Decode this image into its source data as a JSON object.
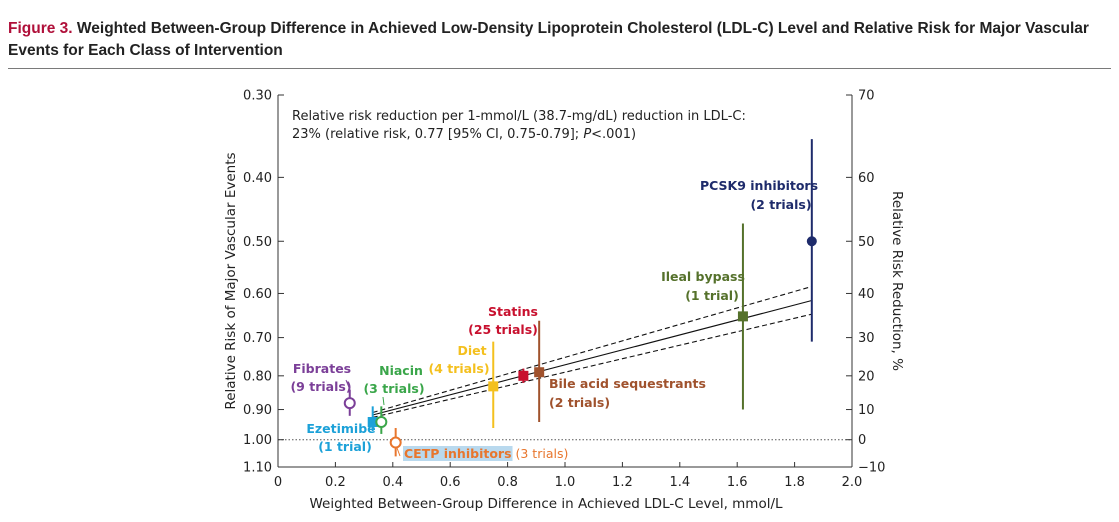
{
  "figure": {
    "number": "Figure 3.",
    "title": "Weighted Between-Group Difference in Achieved Low-Density Lipoprotein Cholesterol (LDL-C) Level and Relative Risk for Major Vascular Events for Each Class of Intervention"
  },
  "chart_data": {
    "type": "scatter",
    "xlabel": "Weighted Between-Group Difference in Achieved LDL-C Level, mmol/L",
    "ylabel": "Relative Risk of Major Vascular Events",
    "ylabel_right": "Relative Risk Reduction, %",
    "xlim": [
      0,
      2.0
    ],
    "y_scale": "log",
    "ylim_rr": [
      0.3,
      1.1
    ],
    "x_ticks": [
      "0",
      "0.2",
      "0.4",
      "0.6",
      "0.8",
      "1.0",
      "1.2",
      "1.4",
      "1.6",
      "1.8",
      "2.0"
    ],
    "y_ticks_left": [
      "0.30",
      "0.40",
      "0.50",
      "0.60",
      "0.70",
      "0.80",
      "0.90",
      "1.00",
      "1.10"
    ],
    "y_ticks_right": [
      "70",
      "60",
      "50",
      "40",
      "30",
      "20",
      "10",
      "0",
      "−10"
    ],
    "annotation_line1": "Relative risk reduction per 1-mmol/L (38.7-mg/dL) reduction in LDL-C:",
    "annotation_line2": "23% (relative risk, 0.77 [95% CI, 0.75-0.79]; P<.001)",
    "regression": {
      "rr_per_mmol": 0.77,
      "ci_low": 0.75,
      "ci_high": 0.79,
      "x_start": 0.33,
      "x_end": 1.86
    },
    "grid": false,
    "reference_line_rr": 1.0,
    "points": [
      {
        "name": "Fibrates",
        "trials": "(9 trials)",
        "x": 0.25,
        "rr": 0.88,
        "ci": [
          0.84,
          0.92
        ],
        "color": "#7b3f98",
        "marker": "open-circle"
      },
      {
        "name": "Ezetimibe",
        "trials": "(1 trial)",
        "x": 0.33,
        "rr": 0.94,
        "ci": [
          0.89,
          0.97
        ],
        "color": "#1ca1d8",
        "marker": "square"
      },
      {
        "name": "Niacin",
        "trials": "(3 trials)",
        "x": 0.36,
        "rr": 0.94,
        "ci": [
          0.89,
          0.98
        ],
        "color": "#3aa64a",
        "marker": "open-circle"
      },
      {
        "name": "CETP inhibitors",
        "trials": "(3 trials)",
        "x": 0.41,
        "rr": 1.01,
        "ci": [
          0.96,
          1.06
        ],
        "color": "#e8762d",
        "marker": "open-circle"
      },
      {
        "name": "Diet",
        "trials": "(4 trials)",
        "x": 0.75,
        "rr": 0.83,
        "ci": [
          0.71,
          0.96
        ],
        "color": "#f4c01e",
        "marker": "square"
      },
      {
        "name": "Statins",
        "trials": "(25 trials)",
        "x": 0.855,
        "rr": 0.8,
        "ci": [
          0.78,
          0.82
        ],
        "color": "#c8102e",
        "marker": "square"
      },
      {
        "name": "Bile acid sequestrants",
        "trials": "(2 trials)",
        "x": 0.91,
        "rr": 0.79,
        "ci": [
          0.66,
          0.94
        ],
        "color": "#a0522d",
        "marker": "square"
      },
      {
        "name": "Ileal bypass",
        "trials": "(1 trial)",
        "x": 1.62,
        "rr": 0.65,
        "ci": [
          0.47,
          0.9
        ],
        "color": "#55712b",
        "marker": "square"
      },
      {
        "name": "PCSK9 inhibitors",
        "trials": "(2 trials)",
        "x": 1.86,
        "rr": 0.5,
        "ci": [
          0.35,
          0.71
        ],
        "color": "#1e2b6b",
        "marker": "circle"
      }
    ]
  }
}
